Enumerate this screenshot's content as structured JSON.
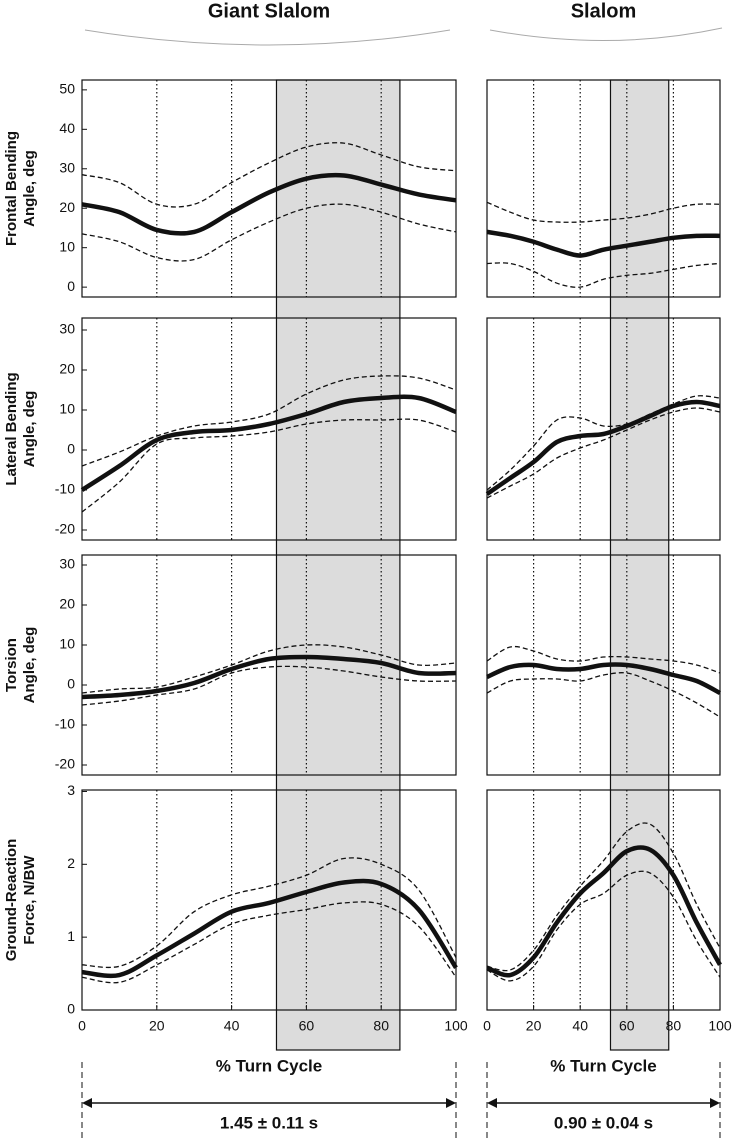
{
  "chart_data": [
    {
      "type": "line",
      "title": "Giant Slalom",
      "ylabel": [
        "Frontal Bending",
        "Angle, deg"
      ],
      "x": [
        0,
        10,
        20,
        30,
        40,
        50,
        60,
        70,
        80,
        90,
        100
      ],
      "xlim": [
        0,
        100
      ],
      "ylim": [
        -2.5,
        52.5
      ],
      "yticks": [
        0,
        10,
        20,
        30,
        40,
        50
      ],
      "vlines": [
        20,
        40,
        60,
        80
      ],
      "shade": [
        52,
        85
      ],
      "series": [
        {
          "color": "#111111",
          "style": "solid",
          "values": [
            21,
            19,
            14.5,
            14,
            19,
            24,
            27.5,
            28.3,
            26,
            23.5,
            22
          ]
        },
        {
          "color": "#111111",
          "style": "dashed",
          "values": [
            28.5,
            26.5,
            21,
            21,
            26.5,
            31.5,
            35.5,
            36.5,
            33.5,
            30.5,
            29.5
          ]
        },
        {
          "color": "#111111",
          "style": "dashed",
          "values": [
            13.5,
            11.5,
            7.5,
            7,
            12,
            16.5,
            20,
            21,
            19,
            16,
            14
          ]
        }
      ]
    },
    {
      "type": "line",
      "title": "Slalom",
      "x": [
        0,
        10,
        20,
        30,
        40,
        50,
        60,
        70,
        80,
        90,
        100
      ],
      "xlim": [
        0,
        100
      ],
      "ylim": [
        -2.5,
        52.5
      ],
      "vlines": [
        20,
        40,
        60,
        80
      ],
      "shade": [
        53,
        78
      ],
      "series": [
        {
          "color": "#111111",
          "style": "solid",
          "values": [
            14,
            13,
            11.5,
            9.5,
            8,
            9.5,
            10.5,
            11.5,
            12.5,
            13,
            13
          ]
        },
        {
          "color": "#111111",
          "style": "dashed",
          "values": [
            21.5,
            19,
            17,
            16.5,
            16.5,
            17,
            17.5,
            18.5,
            20,
            21,
            21
          ]
        },
        {
          "color": "#111111",
          "style": "dashed",
          "values": [
            6,
            6,
            4,
            1,
            0,
            2,
            3,
            3.5,
            4.5,
            5.5,
            6
          ]
        }
      ]
    },
    {
      "type": "line",
      "ylabel": [
        "Lateral Bending",
        "Angle, deg"
      ],
      "x": [
        0,
        10,
        20,
        30,
        40,
        50,
        60,
        70,
        80,
        90,
        100
      ],
      "xlim": [
        0,
        100
      ],
      "ylim": [
        -22.5,
        33
      ],
      "yticks": [
        -20,
        -10,
        0,
        10,
        20,
        30
      ],
      "vlines": [
        20,
        40,
        60,
        80
      ],
      "series": [
        {
          "color": "#111111",
          "style": "solid",
          "values": [
            -10,
            -4,
            2.5,
            4.5,
            5,
            6.5,
            9,
            12,
            13,
            13,
            9.5
          ]
        },
        {
          "color": "#111111",
          "style": "dashed",
          "values": [
            -4,
            -0.5,
            3.5,
            6,
            7,
            9,
            14,
            17.5,
            18.5,
            18,
            15
          ]
        },
        {
          "color": "#111111",
          "style": "dashed",
          "values": [
            -15.5,
            -8,
            1.5,
            3,
            3.5,
            4.5,
            6.5,
            7.5,
            7.5,
            7.5,
            4.5
          ]
        }
      ]
    },
    {
      "type": "line",
      "x": [
        0,
        10,
        20,
        30,
        40,
        50,
        60,
        70,
        80,
        90,
        100
      ],
      "xlim": [
        0,
        100
      ],
      "ylim": [
        -22.5,
        33
      ],
      "vlines": [
        20,
        40,
        60,
        80
      ],
      "series": [
        {
          "color": "#111111",
          "style": "solid",
          "values": [
            -11,
            -7,
            -3,
            2,
            3.5,
            4,
            6,
            8.5,
            11,
            12,
            11
          ]
        },
        {
          "color": "#111111",
          "style": "dashed",
          "values": [
            -10,
            -5,
            1,
            7.5,
            8,
            6,
            6.5,
            9,
            11.5,
            13.5,
            13
          ]
        },
        {
          "color": "#111111",
          "style": "dashed",
          "values": [
            -12,
            -9,
            -6,
            -2,
            0.5,
            2.5,
            5,
            7.5,
            9.5,
            10.5,
            9.5
          ]
        }
      ]
    },
    {
      "type": "line",
      "ylabel": [
        "Torsion",
        "Angle, deg"
      ],
      "x": [
        0,
        10,
        20,
        30,
        40,
        50,
        60,
        70,
        80,
        90,
        100
      ],
      "xlim": [
        0,
        100
      ],
      "ylim": [
        -22.5,
        32.5
      ],
      "yticks": [
        -20,
        -10,
        0,
        10,
        20,
        30
      ],
      "vlines": [
        20,
        40,
        60,
        80
      ],
      "series": [
        {
          "color": "#111111",
          "style": "solid",
          "values": [
            -3,
            -2.5,
            -1.5,
            0.5,
            4,
            6.5,
            7,
            6.5,
            5.5,
            3,
            3
          ]
        },
        {
          "color": "#111111",
          "style": "dashed",
          "values": [
            -2,
            -1,
            -0.5,
            2,
            5,
            8.5,
            10,
            9.5,
            7.5,
            5,
            5.5
          ]
        },
        {
          "color": "#111111",
          "style": "dashed",
          "values": [
            -5,
            -4,
            -2.5,
            -1,
            3,
            4.5,
            4.5,
            3.5,
            2,
            1,
            1
          ]
        }
      ]
    },
    {
      "type": "line",
      "x": [
        0,
        10,
        20,
        30,
        40,
        50,
        60,
        70,
        80,
        90,
        100
      ],
      "xlim": [
        0,
        100
      ],
      "ylim": [
        -22.5,
        32.5
      ],
      "vlines": [
        20,
        40,
        60,
        80
      ],
      "series": [
        {
          "color": "#111111",
          "style": "solid",
          "values": [
            2,
            4.5,
            5,
            4,
            4,
            5,
            5,
            4,
            2.5,
            1,
            -2
          ]
        },
        {
          "color": "#111111",
          "style": "dashed",
          "values": [
            6,
            9.5,
            8.5,
            6.5,
            6,
            7,
            7,
            6.5,
            6,
            5,
            3
          ]
        },
        {
          "color": "#111111",
          "style": "dashed",
          "values": [
            -2,
            1,
            1.5,
            1.5,
            1,
            2.5,
            3,
            1,
            -1.5,
            -4.5,
            -8
          ]
        }
      ]
    },
    {
      "type": "line",
      "ylabel": [
        "Ground-Reaction",
        "Force, N/BW"
      ],
      "xlabel": "% Turn Cycle",
      "annotation": "1.45 ± 0.11 s",
      "x": [
        0,
        10,
        20,
        30,
        40,
        50,
        60,
        70,
        80,
        90,
        100
      ],
      "xlim": [
        0,
        100
      ],
      "ylim": [
        0,
        3.02
      ],
      "yticks": [
        0,
        1,
        2,
        3
      ],
      "xticks": [
        0,
        20,
        40,
        60,
        80,
        100
      ],
      "vlines": [
        20,
        40,
        60,
        80
      ],
      "series": [
        {
          "color": "#111111",
          "style": "solid",
          "values": [
            0.52,
            0.48,
            0.75,
            1.05,
            1.35,
            1.47,
            1.62,
            1.75,
            1.73,
            1.38,
            0.58
          ]
        },
        {
          "color": "#111111",
          "style": "dashed",
          "values": [
            0.62,
            0.6,
            0.88,
            1.35,
            1.58,
            1.7,
            1.85,
            2.08,
            2.0,
            1.65,
            0.72
          ]
        },
        {
          "color": "#111111",
          "style": "dashed",
          "values": [
            0.45,
            0.38,
            0.62,
            0.9,
            1.18,
            1.3,
            1.38,
            1.47,
            1.45,
            1.15,
            0.45
          ]
        }
      ]
    },
    {
      "type": "line",
      "xlabel": "% Turn Cycle",
      "annotation": "0.90 ± 0.04 s",
      "x": [
        0,
        10,
        20,
        30,
        40,
        50,
        60,
        70,
        80,
        90,
        100
      ],
      "xlim": [
        0,
        100
      ],
      "ylim": [
        0,
        3.02
      ],
      "xticks": [
        0,
        20,
        40,
        60,
        80,
        100
      ],
      "vlines": [
        20,
        40,
        60,
        80
      ],
      "series": [
        {
          "color": "#111111",
          "style": "solid",
          "values": [
            0.58,
            0.48,
            0.72,
            1.2,
            1.6,
            1.88,
            2.18,
            2.2,
            1.85,
            1.2,
            0.62
          ]
        },
        {
          "color": "#111111",
          "style": "dashed",
          "values": [
            0.6,
            0.55,
            0.82,
            1.3,
            1.7,
            2.05,
            2.45,
            2.55,
            2.15,
            1.45,
            0.85
          ]
        },
        {
          "color": "#111111",
          "style": "dashed",
          "values": [
            0.55,
            0.4,
            0.6,
            1.1,
            1.45,
            1.6,
            1.85,
            1.88,
            1.55,
            0.95,
            0.45
          ]
        }
      ]
    }
  ]
}
